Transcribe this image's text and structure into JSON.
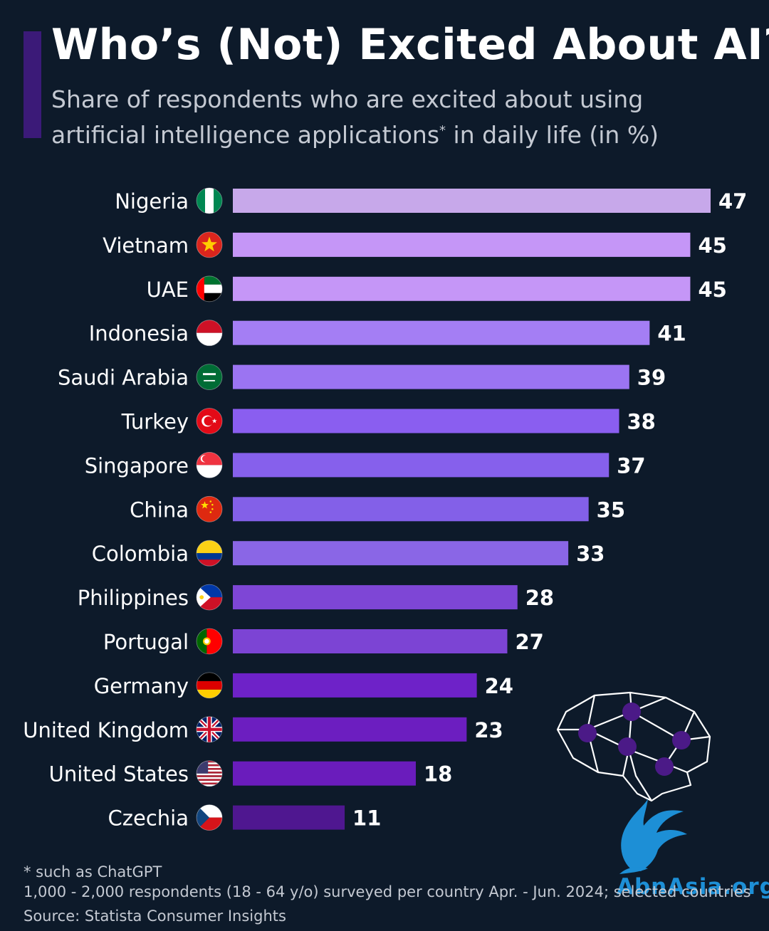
{
  "header": {
    "title": "Who’s (Not) Excited About AI?",
    "subtitle_part1": "Share of respondents who are excited about using artificial intelligence applications",
    "subtitle_asterisk": "*",
    "subtitle_part2": " in daily life (in %)"
  },
  "footer": {
    "note": "* such as ChatGPT",
    "method": "1,000 - 2,000 respondents (18 - 64 y/o) surveyed per country Apr. - Jun. 2024; selected countries",
    "source": "Source: Statista Consumer Insights"
  },
  "watermark": {
    "text": "AbnAsia.org"
  },
  "chart_data": {
    "type": "bar",
    "orientation": "horizontal",
    "categories": [
      "Nigeria",
      "Vietnam",
      "UAE",
      "Indonesia",
      "Saudi Arabia",
      "Turkey",
      "Singapore",
      "China",
      "Colombia",
      "Philippines",
      "Portugal",
      "Germany",
      "United Kingdom",
      "United States",
      "Czechia"
    ],
    "values": [
      47,
      45,
      45,
      41,
      39,
      38,
      37,
      35,
      33,
      28,
      27,
      24,
      23,
      18,
      11
    ],
    "flags": [
      "nigeria-flag-icon",
      "vietnam-flag-icon",
      "uae-flag-icon",
      "indonesia-flag-icon",
      "saudi-arabia-flag-icon",
      "turkey-flag-icon",
      "singapore-flag-icon",
      "china-flag-icon",
      "colombia-flag-icon",
      "philippines-flag-icon",
      "portugal-flag-icon",
      "germany-flag-icon",
      "united-kingdom-flag-icon",
      "united-states-flag-icon",
      "czechia-flag-icon"
    ],
    "bar_colors": [
      "#c7a8ea",
      "#c596f7",
      "#c596f7",
      "#a47ef4",
      "#9b74f2",
      "#8a5ef0",
      "#8660ec",
      "#8360e8",
      "#8a66e6",
      "#7e46d6",
      "#7c44d4",
      "#6e22c8",
      "#6c1ec0",
      "#6a1cbc",
      "#4f1790"
    ],
    "data_labels": "shown",
    "xlabel": "",
    "ylabel": "",
    "xlim": [
      0,
      47
    ]
  }
}
